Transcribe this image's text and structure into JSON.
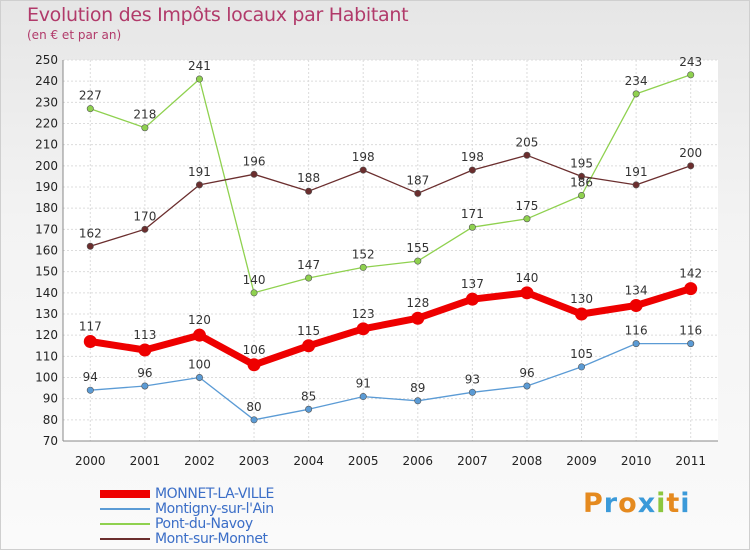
{
  "header": {
    "title": "Evolution des Impôts locaux par Habitant",
    "subtitle": "(en € et par an)"
  },
  "logo": {
    "letters": [
      {
        "ch": "P",
        "color": "#e58a1f"
      },
      {
        "ch": "r",
        "color": "#3b9ad9"
      },
      {
        "ch": "o",
        "color": "#e58a1f"
      },
      {
        "ch": "x",
        "color": "#3b9ad9"
      },
      {
        "ch": "i",
        "color": "#8cc63e"
      },
      {
        "ch": "t",
        "color": "#e58a1f"
      },
      {
        "ch": "i",
        "color": "#3b9ad9"
      }
    ]
  },
  "chart_data": {
    "type": "line",
    "title": "Evolution des Impôts locaux par Habitant",
    "subtitle": "(en € et par an)",
    "x": [
      2000,
      2001,
      2002,
      2003,
      2004,
      2005,
      2006,
      2007,
      2008,
      2009,
      2010,
      2011
    ],
    "ylim": [
      70,
      250
    ],
    "yticks": [
      70,
      80,
      90,
      100,
      110,
      120,
      130,
      140,
      150,
      160,
      170,
      180,
      190,
      200,
      210,
      220,
      230,
      240,
      250
    ],
    "grid": true,
    "legend_position": "bottom-left",
    "series": [
      {
        "name": "MONNET-LA-VILLE",
        "color": "#ee0000",
        "highlight": true,
        "values": [
          117,
          113,
          120,
          106,
          115,
          123,
          128,
          137,
          140,
          130,
          134,
          142
        ]
      },
      {
        "name": "Montigny-sur-l'Ain",
        "color": "#5b9bd5",
        "highlight": false,
        "values": [
          94,
          96,
          100,
          80,
          85,
          91,
          89,
          93,
          96,
          105,
          116,
          116
        ]
      },
      {
        "name": "Pont-du-Navoy",
        "color": "#8fd14f",
        "highlight": false,
        "values": [
          227,
          218,
          241,
          140,
          147,
          152,
          155,
          171,
          175,
          186,
          234,
          243
        ]
      },
      {
        "name": "Mont-sur-Monnet",
        "color": "#6b2e2e",
        "highlight": false,
        "values": [
          162,
          170,
          191,
          196,
          188,
          198,
          187,
          198,
          205,
          195,
          191,
          200
        ]
      }
    ]
  }
}
